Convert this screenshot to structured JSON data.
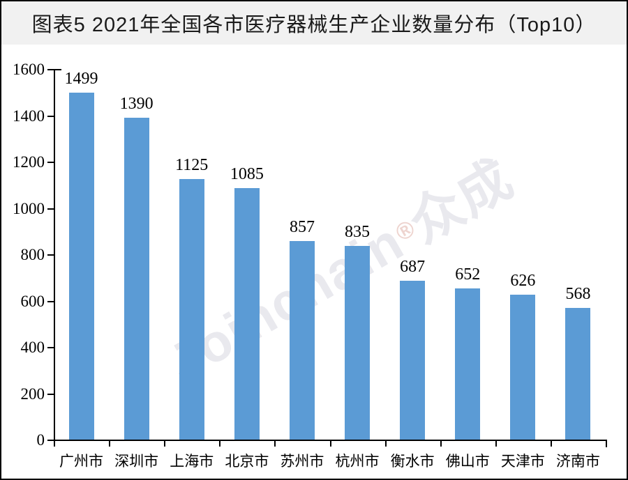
{
  "page": {
    "border_color": "#000000",
    "background": "#ffffff"
  },
  "header": {
    "title": "图表5 2021年全国各市医疗器械生产企业数量分布（Top10）",
    "background": "#f1f1f1",
    "text_color": "#1a1a1a"
  },
  "watermark": {
    "latin": "Joinchain",
    "separator": "®",
    "cjk": "众成",
    "color": "rgba(196,198,210,0.38)",
    "separator_color": "rgba(222,170,160,0.5)"
  },
  "chart_data": {
    "type": "bar",
    "title": "",
    "xlabel": "",
    "ylabel": "",
    "categories": [
      "广州市",
      "深圳市",
      "上海市",
      "北京市",
      "苏州市",
      "杭州市",
      "衡水市",
      "佛山市",
      "天津市",
      "济南市"
    ],
    "values": [
      1499,
      1390,
      1125,
      1085,
      857,
      835,
      687,
      652,
      626,
      568
    ],
    "ylim": [
      0,
      1600
    ],
    "yticks": [
      0,
      200,
      400,
      600,
      800,
      1000,
      1200,
      1400,
      1600
    ],
    "grid": false,
    "legend": null,
    "bar_color": "#5B9BD5",
    "axis_color": "#000000",
    "label_color": "#000000"
  }
}
